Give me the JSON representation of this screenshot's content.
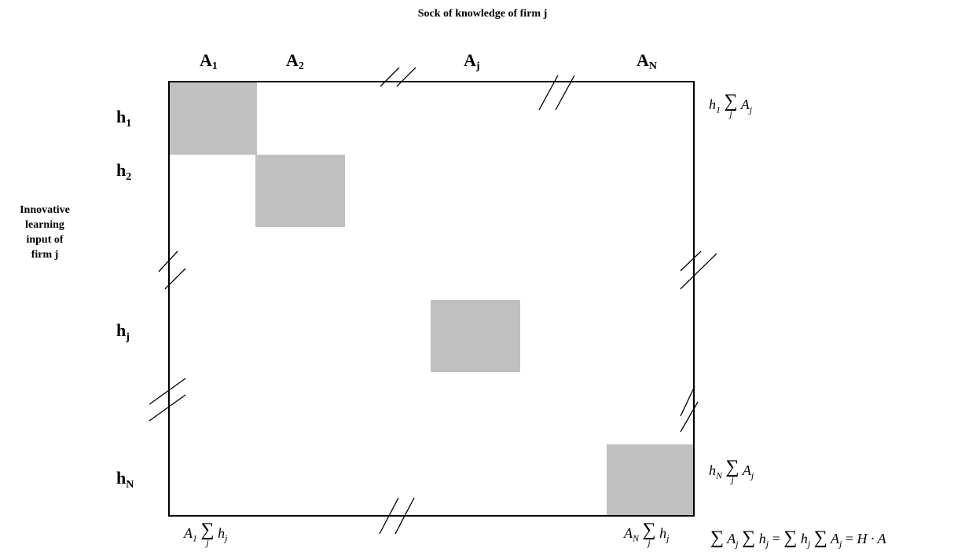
{
  "title": "Sock of knowledge of firm j",
  "side_label": [
    "Innovative",
    "learning",
    "input of",
    "firm j"
  ],
  "columns": [
    {
      "base": "A",
      "sub": "1"
    },
    {
      "base": "A",
      "sub": "2"
    },
    {
      "base": "A",
      "sub": "j"
    },
    {
      "base": "A",
      "sub": "N"
    }
  ],
  "rows": [
    {
      "base": "h",
      "sub": "1"
    },
    {
      "base": "h",
      "sub": "2"
    },
    {
      "base": "h",
      "sub": "j"
    },
    {
      "base": "h",
      "sub": "N"
    }
  ],
  "formulas": {
    "row1": {
      "a": "h",
      "a_sub": "1",
      "sum": "∑",
      "sum_sub": "j",
      "b": "A",
      "b_sub": "j"
    },
    "rowN": {
      "a": "h",
      "a_sub": "N",
      "sum": "∑",
      "sum_sub": "j",
      "b": "A",
      "b_sub": "j"
    },
    "col1": {
      "a": "A",
      "a_sub": "1",
      "sum": "∑",
      "sum_sub": "j",
      "b": "h",
      "b_sub": "j"
    },
    "colN": {
      "a": "A",
      "a_sub": "N",
      "sum": "∑",
      "sum_sub": "j",
      "b": "h",
      "b_sub": "j"
    },
    "total": {
      "s1": "∑",
      "t1": "A",
      "t1_sub": "j",
      "s2": "∑",
      "t2": "h",
      "t2_sub": "j",
      "eq1": "=",
      "s3": "∑",
      "t3": "h",
      "t3_sub": "j",
      "s4": "∑",
      "t4": "A",
      "t4_sub": "j",
      "eq2": "=",
      "rhs": "H · A"
    }
  },
  "colors": {
    "cell": "#c0c0c0",
    "line": "#000000"
  }
}
